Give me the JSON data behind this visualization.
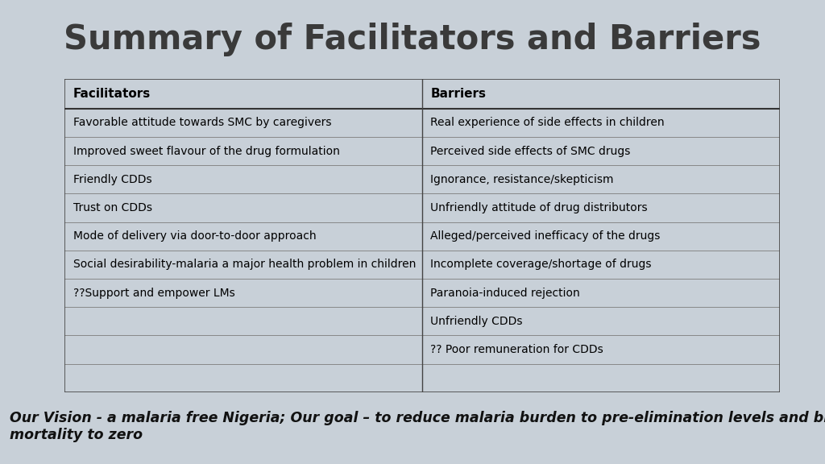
{
  "title": "Summary of Facilitators and Barriers",
  "title_fontsize": 30,
  "title_color": "#3a3a3a",
  "bg_color": "#c8d0d8",
  "table_bg": "#ffffff",
  "footer_bg": "#7dc242",
  "footer_text": "Our Vision - a malaria free Nigeria; Our goal – to reduce malaria burden to pre-elimination levels and bring malaria-related\nmortality to zero",
  "footer_fontsize": 12.5,
  "footer_color": "#111111",
  "col_headers": [
    "Facilitators",
    "Barriers"
  ],
  "facilitators": [
    "Favorable attitude towards SMC by caregivers",
    "Improved sweet flavour of the drug formulation",
    "Friendly CDDs",
    "Trust on CDDs",
    "Mode of delivery via door-to-door approach",
    "Social desirability-malaria a major health problem in children",
    "??Support and empower LMs",
    "",
    "",
    ""
  ],
  "barriers": [
    "Real experience of side effects in children",
    "Perceived side effects of SMC drugs",
    "Ignorance, resistance/skepticism",
    "Unfriendly attitude of drug distributors",
    "Alleged/perceived inefficacy of the drugs",
    "Incomplete coverage/shortage of drugs",
    "Paranoia-induced rejection",
    "Unfriendly CDDs",
    "?? Poor remuneration for CDDs",
    ""
  ],
  "col_header_fontsize": 11,
  "cell_fontsize": 10,
  "left_bar_color": "#7a8694",
  "right_bar_color": "#7a8694"
}
